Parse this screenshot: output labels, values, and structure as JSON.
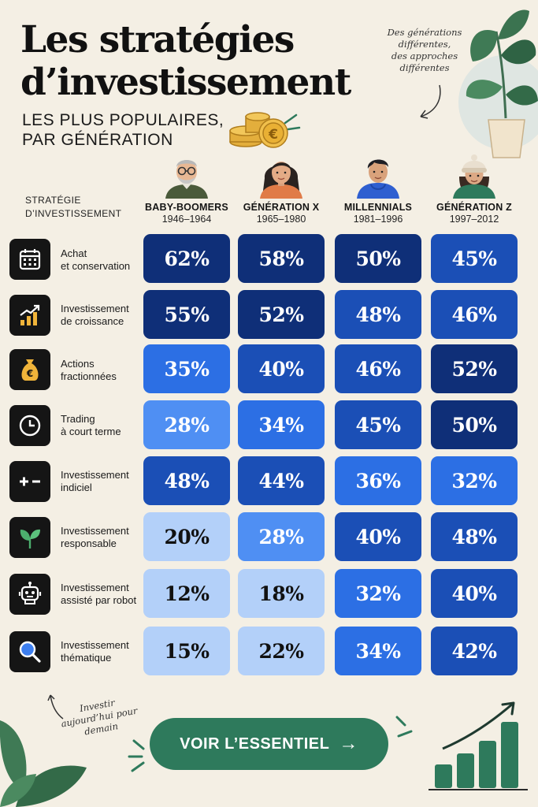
{
  "title_lines": [
    "Les stratégies",
    "d’investissement"
  ],
  "subtitle_lines": [
    "LES PLUS POPULAIRES,",
    "PAR GÉNÉRATION"
  ],
  "note_top_lines": [
    "Des générations",
    "différentes,",
    "des approches",
    "différentes"
  ],
  "note_bottom_lines": [
    "Investir",
    "aujourd’hui pour",
    "demain"
  ],
  "strategy_header_lines": [
    "STRATÉGIE",
    "D’INVESTISSEMENT"
  ],
  "cta_label": "VOIR L’ESSENTIEL",
  "cta_arrow": "→",
  "colors": {
    "scale": [
      "#b3d0f9",
      "#4f8ff3",
      "#2c6fe4",
      "#1b4fb6",
      "#0f2f78"
    ],
    "cta": "#2e7a5c",
    "icon_bg": "#151515"
  },
  "chart_data": {
    "type": "table",
    "unit": "%",
    "columns": [
      {
        "name": "BABY-BOOMERS",
        "years": "1946–1964",
        "avatar": "baby-boomer-avatar-icon"
      },
      {
        "name": "GÉNÉRATION X",
        "years": "1965–1980",
        "avatar": "generation-x-avatar-icon"
      },
      {
        "name": "MILLENNIALS",
        "years": "1981–1996",
        "avatar": "millennial-avatar-icon"
      },
      {
        "name": "GÉNÉRATION Z",
        "years": "1997–2012",
        "avatar": "generation-z-avatar-icon"
      }
    ],
    "rows": [
      {
        "label_lines": [
          "Achat",
          "et conservation"
        ],
        "icon": "calendar-icon",
        "values": [
          62,
          58,
          50,
          45
        ]
      },
      {
        "label_lines": [
          "Investissement",
          "de croissance"
        ],
        "icon": "growth-chart-icon",
        "values": [
          55,
          52,
          48,
          46
        ]
      },
      {
        "label_lines": [
          "Actions",
          "fractionnées"
        ],
        "icon": "money-bag-icon",
        "values": [
          35,
          40,
          46,
          52
        ]
      },
      {
        "label_lines": [
          "Trading",
          "à court terme"
        ],
        "icon": "clock-icon",
        "values": [
          28,
          34,
          45,
          50
        ]
      },
      {
        "label_lines": [
          "Investissement",
          "indiciel"
        ],
        "icon": "plus-minus-icon",
        "values": [
          48,
          44,
          36,
          32
        ]
      },
      {
        "label_lines": [
          "Investissement",
          "responsable"
        ],
        "icon": "leaf-icon",
        "values": [
          20,
          28,
          40,
          48
        ]
      },
      {
        "label_lines": [
          "Investissement",
          "assisté par robot"
        ],
        "icon": "robot-icon",
        "values": [
          12,
          18,
          32,
          40
        ]
      },
      {
        "label_lines": [
          "Investissement",
          "thématique"
        ],
        "icon": "magnifier-icon",
        "values": [
          15,
          22,
          34,
          42
        ]
      }
    ]
  }
}
